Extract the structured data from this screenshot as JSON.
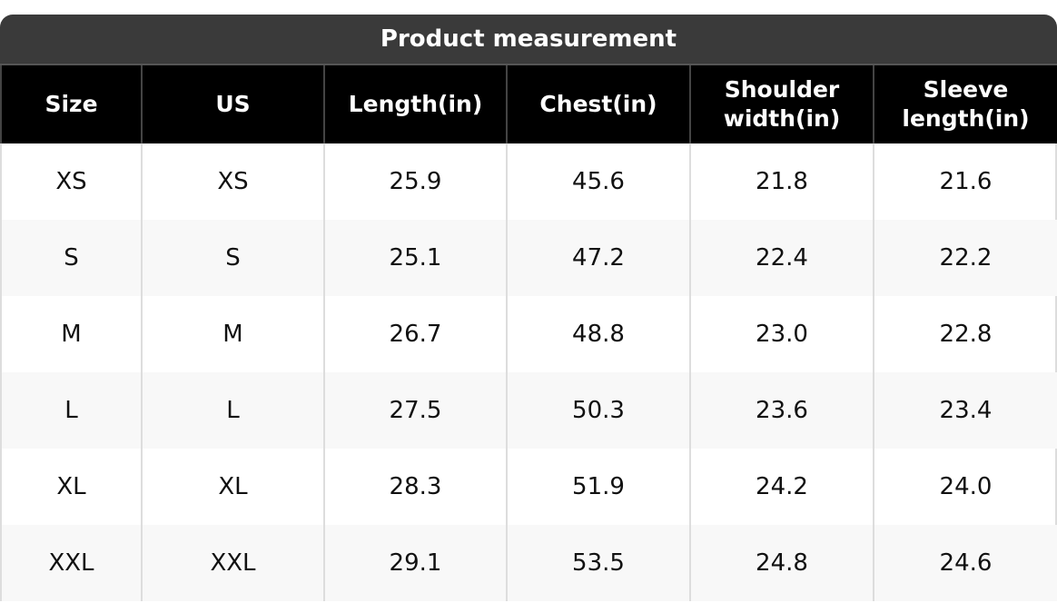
{
  "table": {
    "title": "Product measurement",
    "header": [
      "Size",
      "US",
      "Length(in)",
      "Chest(in)",
      "Shoulder width(in)",
      "Sleeve length(in)"
    ],
    "rows": [
      [
        "XS",
        "XS",
        "25.9",
        "45.6",
        "21.8",
        "21.6"
      ],
      [
        "S",
        "S",
        "25.1",
        "47.2",
        "22.4",
        "22.2"
      ],
      [
        "M",
        "M",
        "26.7",
        "48.8",
        "23.0",
        "22.8"
      ],
      [
        "L",
        "L",
        "27.5",
        "50.3",
        "23.6",
        "23.4"
      ],
      [
        "XL",
        "XL",
        "28.3",
        "51.9",
        "24.2",
        "24.0"
      ],
      [
        "XXL",
        "XXL",
        "29.1",
        "53.5",
        "24.8",
        "24.6"
      ]
    ]
  }
}
